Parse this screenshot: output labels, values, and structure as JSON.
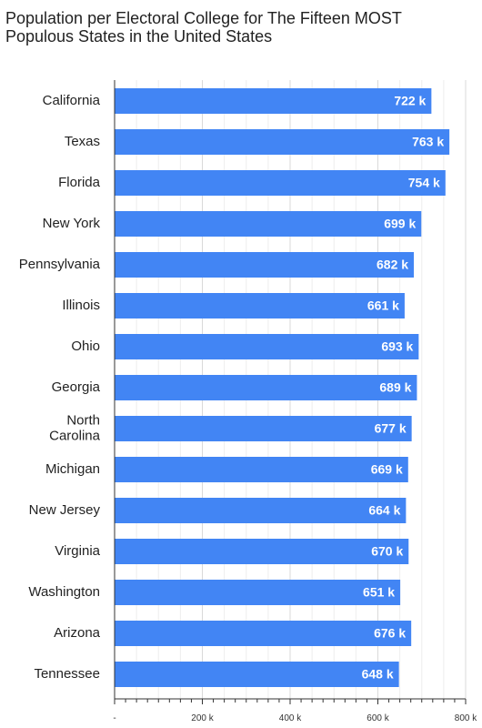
{
  "chart_data": {
    "type": "bar",
    "orientation": "horizontal",
    "title": "Population per Electoral College for The Fifteen MOST Populous States in the United States",
    "categories": [
      [
        "California"
      ],
      [
        "Texas"
      ],
      [
        "Florida"
      ],
      [
        "New York"
      ],
      [
        "Pennsylvania"
      ],
      [
        "Illinois"
      ],
      [
        "Ohio"
      ],
      [
        "Georgia"
      ],
      [
        "North",
        "Carolina"
      ],
      [
        "Michigan"
      ],
      [
        "New Jersey"
      ],
      [
        "Virginia"
      ],
      [
        "Washington"
      ],
      [
        "Arizona"
      ],
      [
        "Tennessee"
      ]
    ],
    "values": [
      722,
      763,
      754,
      699,
      682,
      661,
      693,
      689,
      677,
      669,
      664,
      670,
      651,
      676,
      648
    ],
    "value_labels": [
      "722 k",
      "763 k",
      "754 k",
      "699 k",
      "682 k",
      "661 k",
      "693 k",
      "689 k",
      "677 k",
      "669 k",
      "664 k",
      "670 k",
      "651 k",
      "676 k",
      "648 k"
    ],
    "xlim": [
      0,
      800
    ],
    "x_ticks": [
      0,
      200,
      400,
      600,
      800
    ],
    "x_tick_labels": [
      "-",
      "200 k",
      "400 k",
      "600 k",
      "800 k"
    ],
    "xlabel": "",
    "ylabel": "",
    "grid": true,
    "bar_color": "#4285f4"
  }
}
